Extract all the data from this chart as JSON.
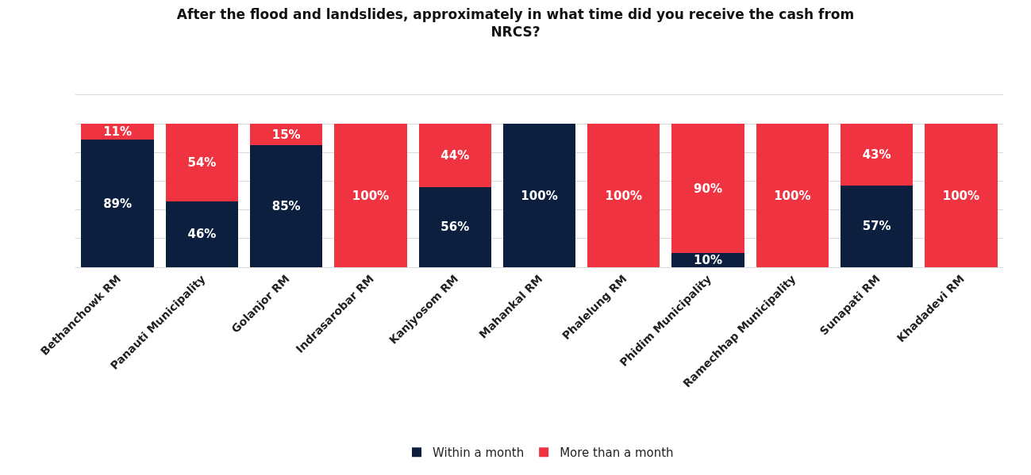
{
  "chart_data": {
    "type": "bar",
    "stacked": true,
    "title": "After the flood and landslides, approximately in what time did you receive the cash from NRCS?",
    "categories": [
      "Bethanchowk RM",
      "Panauti Municipality",
      "Golanjor RM",
      "Indrasarobar RM",
      "Kanjyosom RM",
      "Mahankal RM",
      "Phalelung RM",
      "Phidim Municipality",
      "Ramechhap Municipality",
      "Sunapati RM",
      "Khadadevi RM"
    ],
    "series": [
      {
        "name": "Within a month",
        "color": "#0c1f3f",
        "values": [
          89,
          46,
          85,
          0,
          56,
          100,
          0,
          10,
          0,
          57,
          0
        ],
        "value_labels": [
          "89%",
          "46%",
          "85%",
          null,
          "56%",
          "100%",
          null,
          "10%",
          null,
          "57%",
          null
        ]
      },
      {
        "name": "More than a month",
        "color": "#ef3340",
        "values": [
          11,
          54,
          15,
          100,
          44,
          0,
          100,
          90,
          100,
          43,
          100
        ],
        "value_labels": [
          "11%",
          "54%",
          "15%",
          "100%",
          "44%",
          null,
          "100%",
          "90%",
          "100%",
          "43%",
          "100%"
        ]
      }
    ],
    "ylim": [
      0,
      120
    ],
    "yticks": [
      {
        "value": 0,
        "label": null
      },
      {
        "value": 20,
        "label": null
      },
      {
        "value": 40,
        "label": null
      },
      {
        "value": 60,
        "label": null
      },
      {
        "value": 80,
        "label": null
      },
      {
        "value": 100,
        "label": null
      },
      {
        "value": 120,
        "label": null
      }
    ],
    "grid": "y",
    "legend": "bottom",
    "tick_labels": "x"
  }
}
